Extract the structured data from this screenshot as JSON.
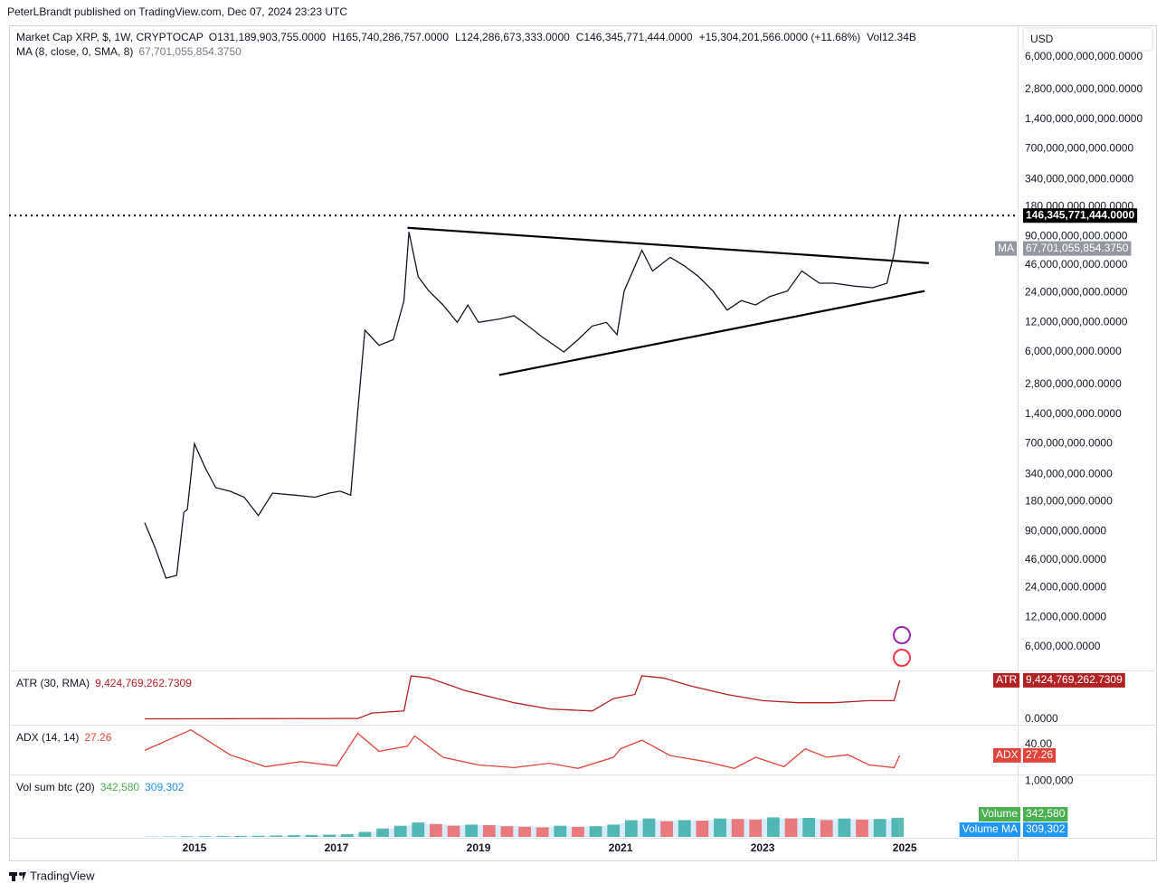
{
  "header": {
    "publisher": "PeterLBrandt published on TradingView.com, Dec 07, 2024 23:23 UTC",
    "footer": "TradingView"
  },
  "chart_data": [
    {
      "type": "line",
      "title": "Market Cap XRP, $, 1W, CRYPTOCAP",
      "ohlc": [
        "O131,189,903,755.0000",
        "H165,740,286,757.0000",
        "L124,286,673,333.0000",
        "C146,345,771,444.0000",
        "+15,304,201,566.0000 (+11.68%)",
        "Vol12.34B"
      ],
      "currency": "USD",
      "log_scale": true,
      "xlim": [
        2012.39,
        2026.59
      ],
      "xticks": [
        2015,
        2017,
        2019,
        2021,
        2023,
        2025
      ],
      "ylim": [
        3530000,
        12600000000000
      ],
      "yticks": [
        {
          "value": 6000000000000,
          "label": "6,000,000,000,000.0000"
        },
        {
          "value": 2800000000000,
          "label": "2,800,000,000,000.0000"
        },
        {
          "value": 1400000000000,
          "label": "1,400,000,000,000.0000"
        },
        {
          "value": 700000000000,
          "label": "700,000,000,000.0000"
        },
        {
          "value": 340000000000,
          "label": "340,000,000,000.0000"
        },
        {
          "value": 180000000000,
          "label": "180,000,000,000.0000"
        },
        {
          "value": 90000000000,
          "label": "90,000,000,000.0000"
        },
        {
          "value": 46000000000,
          "label": "46,000,000,000.0000"
        },
        {
          "value": 24000000000,
          "label": "24,000,000,000.0000"
        },
        {
          "value": 12000000000,
          "label": "12,000,000,000.0000"
        },
        {
          "value": 6000000000,
          "label": "6,000,000,000.0000"
        },
        {
          "value": 2800000000,
          "label": "2,800,000,000.0000"
        },
        {
          "value": 1400000000,
          "label": "1,400,000,000.0000"
        },
        {
          "value": 700000000,
          "label": "700,000,000.0000"
        },
        {
          "value": 340000000,
          "label": "340,000,000.0000"
        },
        {
          "value": 180000000,
          "label": "180,000,000.0000"
        },
        {
          "value": 90000000,
          "label": "90,000,000.0000"
        },
        {
          "value": 46000000,
          "label": "46,000,000.0000"
        },
        {
          "value": 24000000,
          "label": "24,000,000.0000"
        },
        {
          "value": 12000000,
          "label": "12,000,000.0000"
        },
        {
          "value": 6000000,
          "label": "6,000,000.0000"
        }
      ],
      "x": [
        2014.3,
        2014.45,
        2014.6,
        2014.75,
        2014.85,
        2014.9,
        2015.0,
        2015.15,
        2015.3,
        2015.5,
        2015.7,
        2015.9,
        2016.1,
        2016.4,
        2016.7,
        2016.9,
        2017.05,
        2017.2,
        2017.3,
        2017.4,
        2017.6,
        2017.8,
        2017.95,
        2018.02,
        2018.15,
        2018.3,
        2018.5,
        2018.7,
        2018.85,
        2019.0,
        2019.3,
        2019.5,
        2019.7,
        2019.9,
        2020.2,
        2020.4,
        2020.6,
        2020.8,
        2020.95,
        2021.05,
        2021.3,
        2021.45,
        2021.7,
        2021.9,
        2022.1,
        2022.3,
        2022.5,
        2022.7,
        2022.9,
        2023.1,
        2023.35,
        2023.55,
        2023.8,
        2024.0,
        2024.3,
        2024.55,
        2024.75,
        2024.85,
        2024.93
      ],
      "series": [
        {
          "color": "#131722",
          "values": [
            110000000,
            60000000,
            30000000,
            32000000,
            140000000,
            150000000,
            700000000,
            400000000,
            250000000,
            230000000,
            200000000,
            130000000,
            220000000,
            210000000,
            200000000,
            220000000,
            230000000,
            210000000,
            1500000000,
            10000000000,
            7000000000,
            8000000000,
            20000000000,
            100000000000,
            35000000000,
            25000000000,
            18000000000,
            12000000000,
            18000000000,
            12000000000,
            13000000000,
            14000000000,
            11000000000,
            8500000000,
            6000000000,
            8000000000,
            11000000000,
            12000000000,
            9000000000,
            25000000000,
            65000000000,
            40000000000,
            55000000000,
            45000000000,
            35000000000,
            25000000000,
            16000000000,
            20000000000,
            18000000000,
            22000000000,
            25000000000,
            40000000000,
            30000000000,
            30000000000,
            28000000000,
            27000000000,
            30000000000,
            60000000000,
            146345771444
          ]
        }
      ],
      "last_price": 146345771444,
      "last_price_label": "146,345,771,444.0000",
      "ma_title": "MA (8, close, 0, SMA, 8)",
      "ma_badge": "MA",
      "ma_value": 67701055854.375,
      "ma_value_label": "67,701,055,854.3750",
      "trendlines": [
        {
          "x": [
            2018.0,
            2025.34
          ],
          "values": [
            110000000000,
            48000000000
          ]
        },
        {
          "x": [
            2019.29,
            2025.28
          ],
          "values": [
            3500000000,
            25000000000
          ]
        }
      ]
    },
    {
      "type": "line",
      "title": "ATR (30, RMA)",
      "badge": "ATR",
      "last_label": "9,424,769,262.7309",
      "ylim": [
        -1100000000,
        11600000000
      ],
      "yticks": [
        {
          "value": 0,
          "label": "0.0000"
        }
      ],
      "x": [
        2014.3,
        2017.3,
        2017.5,
        2017.95,
        2018.05,
        2018.3,
        2018.8,
        2019.5,
        2020.0,
        2020.6,
        2020.9,
        2021.2,
        2021.3,
        2021.6,
        2022.0,
        2022.5,
        2023.0,
        2023.5,
        2024.0,
        2024.5,
        2024.85,
        2024.93
      ],
      "series": [
        {
          "color": "#b22222",
          "values": [
            100000000,
            200000000,
            1500000000,
            2000000000,
            10500000000,
            10000000000,
            7000000000,
            4000000000,
            2500000000,
            2000000000,
            5000000000,
            6000000000,
            10500000000,
            10000000000,
            8000000000,
            6000000000,
            4500000000,
            4000000000,
            4000000000,
            4500000000,
            4500000000,
            9424769262.7309
          ]
        }
      ]
    },
    {
      "type": "line",
      "title": "ADX (14, 14)",
      "badge": "ADX",
      "last_label": "27.26",
      "ylim": [
        6,
        62
      ],
      "yticks": [
        {
          "value": 40,
          "label": "40.00"
        }
      ],
      "x": [
        2014.3,
        2014.95,
        2015.5,
        2016.0,
        2016.5,
        2017.0,
        2017.3,
        2017.6,
        2018.0,
        2018.1,
        2018.5,
        2019.0,
        2019.5,
        2020.0,
        2020.4,
        2020.9,
        2021.0,
        2021.3,
        2021.7,
        2022.2,
        2022.6,
        2022.9,
        2023.3,
        2023.6,
        2023.9,
        2024.2,
        2024.5,
        2024.85,
        2024.93
      ],
      "series": [
        {
          "color": "#e0443a",
          "values": [
            33,
            57,
            28,
            14,
            20,
            15,
            53,
            32,
            38,
            50,
            25,
            16,
            13,
            18,
            12,
            25,
            35,
            45,
            27,
            20,
            12,
            25,
            14,
            35,
            25,
            28,
            16,
            13,
            27.26
          ]
        }
      ]
    },
    {
      "type": "bar",
      "title": "Vol sum btc (20)",
      "ylim": [
        0,
        1100000
      ],
      "yticks": [
        {
          "value": 1000000,
          "label": "1,000,000"
        }
      ],
      "x": [
        2014.4,
        2014.65,
        2014.9,
        2015.15,
        2015.4,
        2015.65,
        2015.9,
        2016.15,
        2016.4,
        2016.65,
        2016.9,
        2017.15,
        2017.4,
        2017.65,
        2017.9,
        2018.15,
        2018.4,
        2018.65,
        2018.9,
        2019.15,
        2019.4,
        2019.65,
        2019.9,
        2020.15,
        2020.4,
        2020.65,
        2020.9,
        2021.15,
        2021.4,
        2021.65,
        2021.9,
        2022.15,
        2022.4,
        2022.65,
        2022.9,
        2023.15,
        2023.4,
        2023.65,
        2023.9,
        2024.15,
        2024.4,
        2024.65,
        2024.9
      ],
      "series": [
        {
          "name": "Volume",
          "color": "#26a69a",
          "last_label": "342,580",
          "values": [
            5000,
            8000,
            10000,
            12000,
            15000,
            15000,
            20000,
            25000,
            30000,
            35000,
            40000,
            50000,
            90000,
            150000,
            200000,
            260000,
            230000,
            200000,
            220000,
            210000,
            190000,
            180000,
            170000,
            200000,
            180000,
            190000,
            220000,
            300000,
            330000,
            280000,
            300000,
            290000,
            330000,
            320000,
            310000,
            350000,
            330000,
            340000,
            300000,
            330000,
            310000,
            320000,
            342580
          ]
        },
        {
          "name": "Volume MA",
          "color": "#2196f3",
          "last_label": "309,302",
          "values": [
            5000,
            7000,
            9000,
            11000,
            13000,
            15000,
            18000,
            22000,
            28000,
            33000,
            38000,
            45000,
            70000,
            120000,
            180000,
            230000,
            230000,
            215000,
            210000,
            210000,
            200000,
            190000,
            180000,
            185000,
            185000,
            190000,
            210000,
            270000,
            310000,
            300000,
            300000,
            295000,
            315000,
            320000,
            315000,
            330000,
            335000,
            335000,
            320000,
            320000,
            315000,
            315000,
            309302
          ]
        }
      ]
    }
  ]
}
